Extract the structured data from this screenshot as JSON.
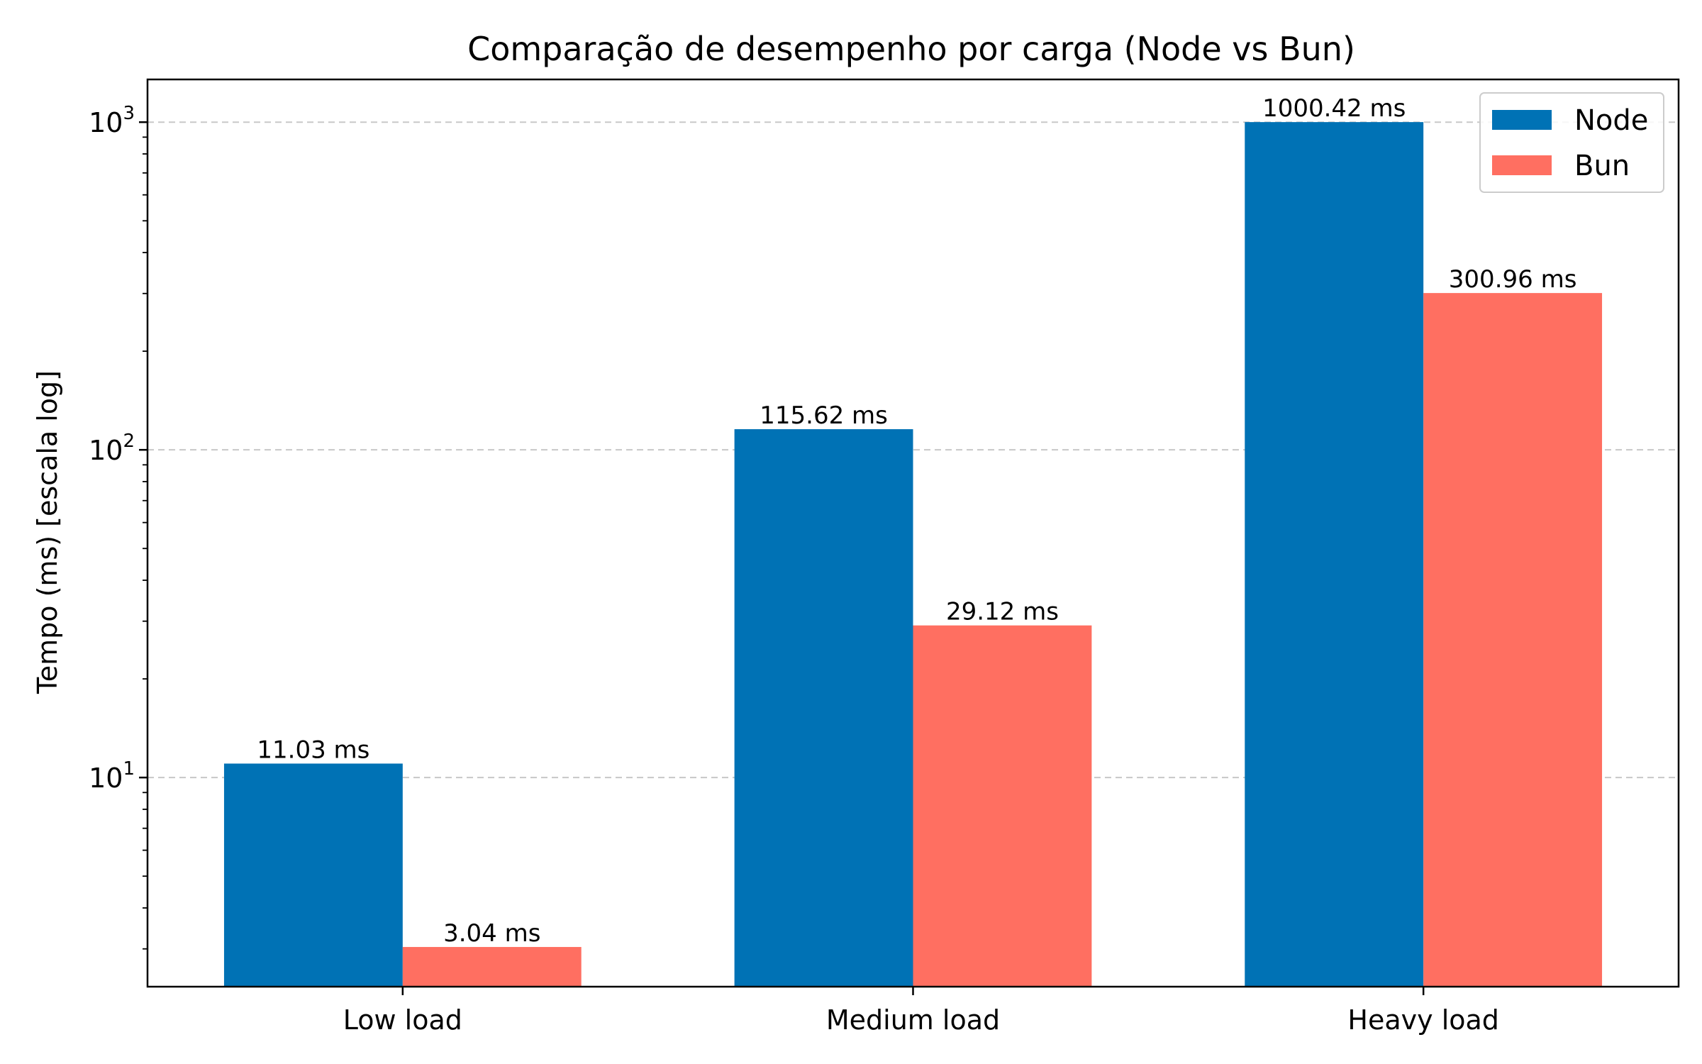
{
  "chart_data": {
    "type": "bar",
    "title": "Comparação de desempenho por carga (Node vs Bun)",
    "xlabel": "",
    "ylabel": "Tempo (ms) [escala log]",
    "yscale": "log",
    "ylim": [
      2.3,
      1350
    ],
    "yticks": [
      {
        "base": "10",
        "exp": "1",
        "value": 10
      },
      {
        "base": "10",
        "exp": "2",
        "value": 100
      },
      {
        "base": "10",
        "exp": "3",
        "value": 1000
      }
    ],
    "grid": true,
    "legend_position": "top-right",
    "categories": [
      "Low load",
      "Medium load",
      "Heavy load"
    ],
    "series": [
      {
        "name": "Node",
        "color": "#0072b5",
        "values": [
          11.03,
          115.62,
          1000.42
        ],
        "labels": [
          "11.03 ms",
          "115.62 ms",
          "1000.42 ms"
        ]
      },
      {
        "name": "Bun",
        "color": "#ff6f61",
        "values": [
          3.04,
          29.12,
          300.96
        ],
        "labels": [
          "3.04 ms",
          "29.12 ms",
          "300.96 ms"
        ]
      }
    ]
  }
}
